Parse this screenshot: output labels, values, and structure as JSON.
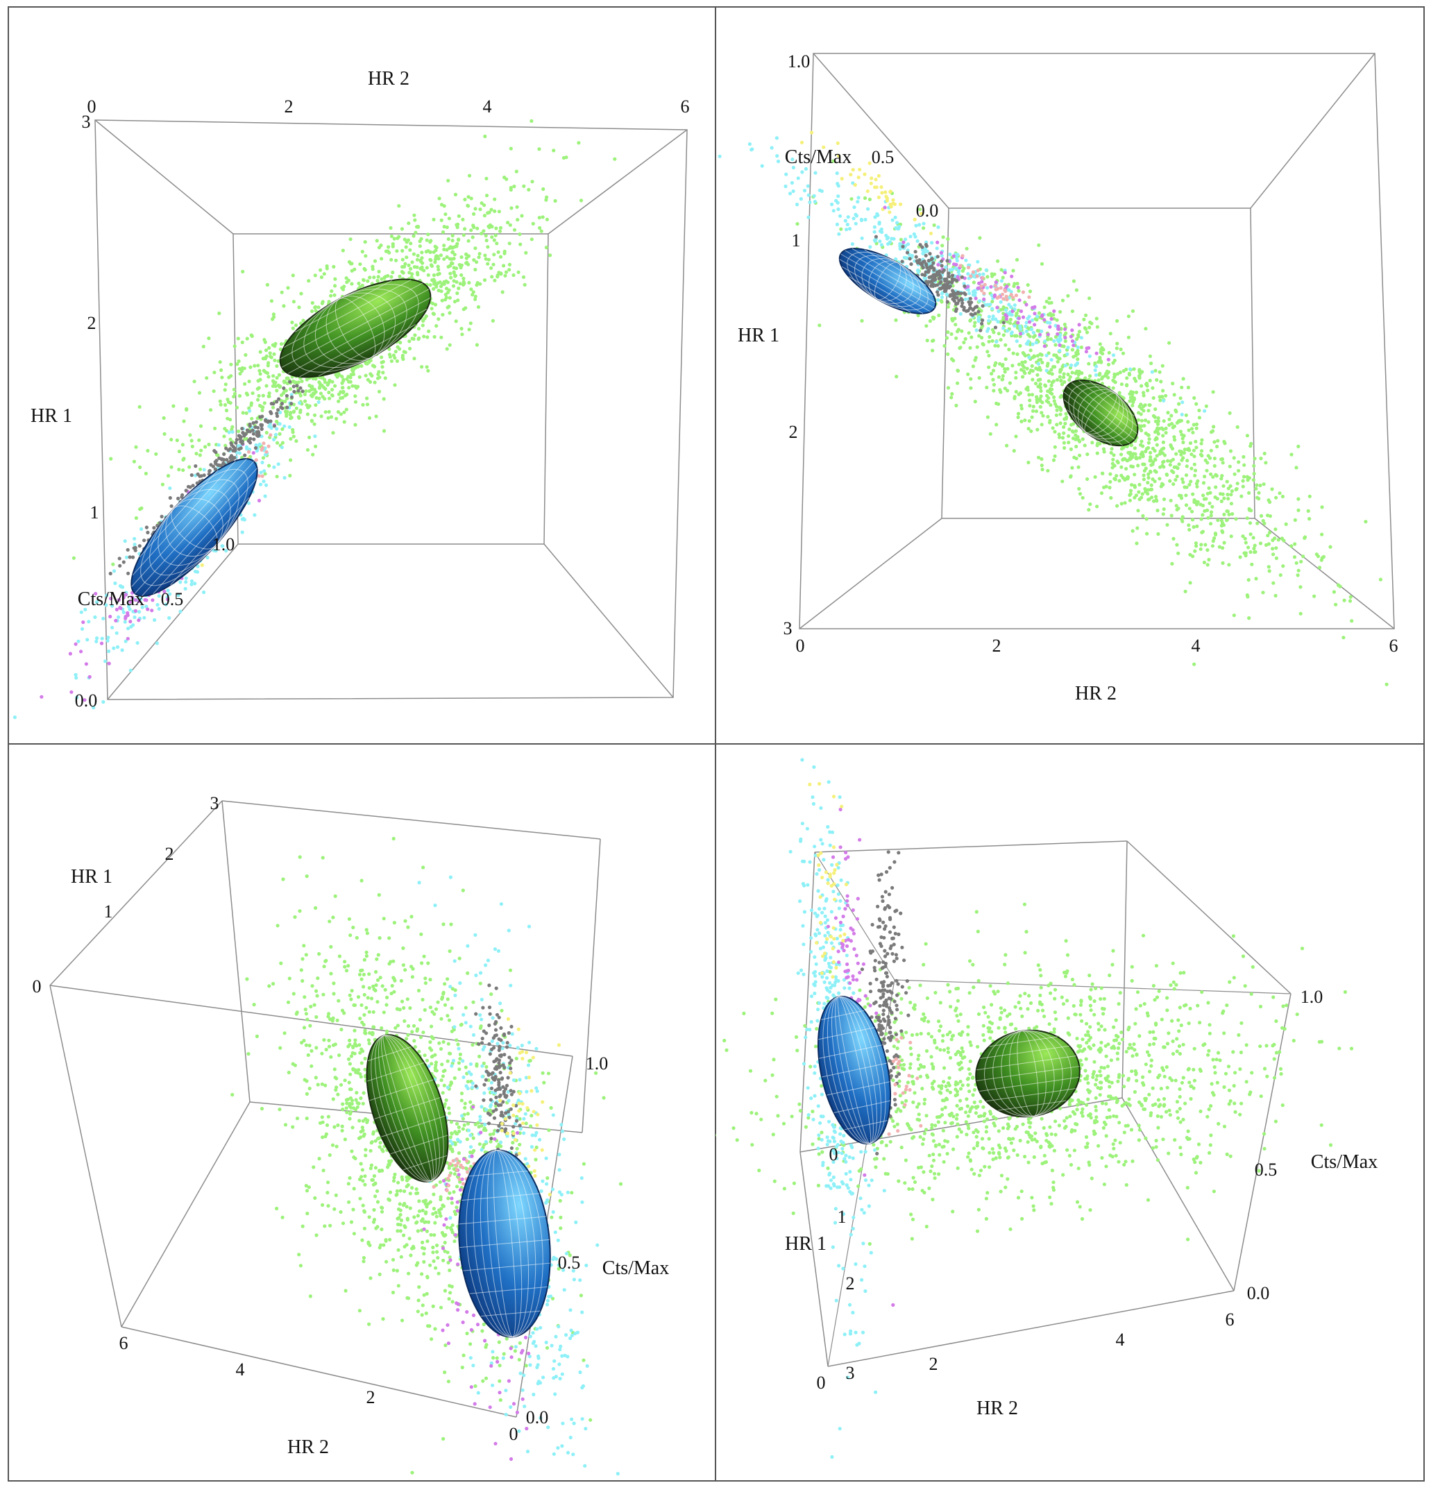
{
  "figure": {
    "border_color": "#555555",
    "box_color": "#8c8c8c",
    "point_colors": {
      "green": "#9cf27a",
      "cyan": "#8ef0f7",
      "magenta": "#d37be8",
      "gray": "#7a7a7a",
      "yellow": "#f5f07a",
      "pink": "#f2b0b0"
    }
  },
  "chart_data": [
    {
      "panel": "top-left",
      "type": "scatter3d",
      "view": "viewed along the Cts/Max axis from above",
      "axes": {
        "hr2": {
          "label": "HR 2",
          "ticks": [
            "0",
            "2",
            "4",
            "6"
          ],
          "range": [
            0,
            6
          ]
        },
        "hr1": {
          "label": "HR 1",
          "ticks": [
            "3",
            "2",
            "1"
          ],
          "range": [
            0,
            3
          ]
        },
        "cts": {
          "label": "Cts/Max",
          "ticks": [
            "0.0",
            "0.5",
            "1.0"
          ],
          "visible_ticks": [
            "0.0",
            "0.5",
            "1.0"
          ],
          "range": [
            0,
            1
          ]
        }
      },
      "clusters": [
        {
          "name": "green cloud",
          "color": "green",
          "center": {
            "hr2": 2.8,
            "hr1": 1.85,
            "cts": 0.2
          }
        },
        {
          "name": "blue cloud",
          "color": "cyan",
          "center": {
            "hr2": 1.0,
            "hr1": 1.0,
            "cts": 0.7
          }
        }
      ],
      "ellipsoids": [
        {
          "name": "green ellipsoid",
          "center": {
            "hr2": 2.85,
            "hr1": 1.85
          }
        },
        {
          "name": "blue ellipsoid",
          "center": {
            "hr2": 1.05,
            "hr1": 1.0
          }
        }
      ]
    },
    {
      "panel": "top-right",
      "type": "scatter3d",
      "view": "viewed along the Cts/Max axis, HR 1 increasing downward",
      "axes": {
        "hr2": {
          "label": "HR 2",
          "ticks": [
            "0",
            "2",
            "4",
            "6"
          ],
          "range": [
            0,
            6
          ]
        },
        "hr1": {
          "label": "HR 1",
          "ticks": [
            "1",
            "2",
            "3"
          ],
          "range": [
            0,
            3
          ]
        },
        "cts": {
          "label": "Cts/Max",
          "ticks": [
            "1.0",
            "0.5",
            "0.0"
          ],
          "range": [
            0,
            1
          ]
        }
      },
      "clusters": [
        {
          "name": "green cloud",
          "color": "green",
          "center": {
            "hr2": 2.9,
            "hr1": 1.9
          }
        },
        {
          "name": "blue cloud",
          "color": "cyan",
          "center": {
            "hr2": 1.2,
            "hr1": 1.05
          }
        }
      ]
    },
    {
      "panel": "bottom-left",
      "type": "scatter3d",
      "view": "perspective view",
      "axes": {
        "hr2": {
          "label": "HR 2",
          "ticks": [
            "6",
            "4",
            "2",
            "0"
          ],
          "range": [
            0,
            6
          ]
        },
        "hr1": {
          "label": "HR 1",
          "ticks": [
            "0",
            "1",
            "2",
            "3"
          ],
          "range": [
            0,
            3
          ]
        },
        "cts": {
          "label": "Cts/Max",
          "ticks": [
            "0.0",
            "0.5",
            "1.0"
          ],
          "range": [
            0,
            1
          ]
        }
      }
    },
    {
      "panel": "bottom-right",
      "type": "scatter3d",
      "view": "perspective view",
      "axes": {
        "hr2": {
          "label": "HR 2",
          "ticks": [
            "0",
            "2",
            "4",
            "6"
          ],
          "range": [
            0,
            6
          ]
        },
        "hr1": {
          "label": "HR 1",
          "ticks": [
            "0",
            "1",
            "2",
            "3"
          ],
          "range": [
            0,
            3
          ]
        },
        "cts": {
          "label": "Cts/Max",
          "ticks": [
            "0.0",
            "0.5",
            "1.0"
          ],
          "range": [
            0,
            1
          ]
        }
      }
    }
  ]
}
